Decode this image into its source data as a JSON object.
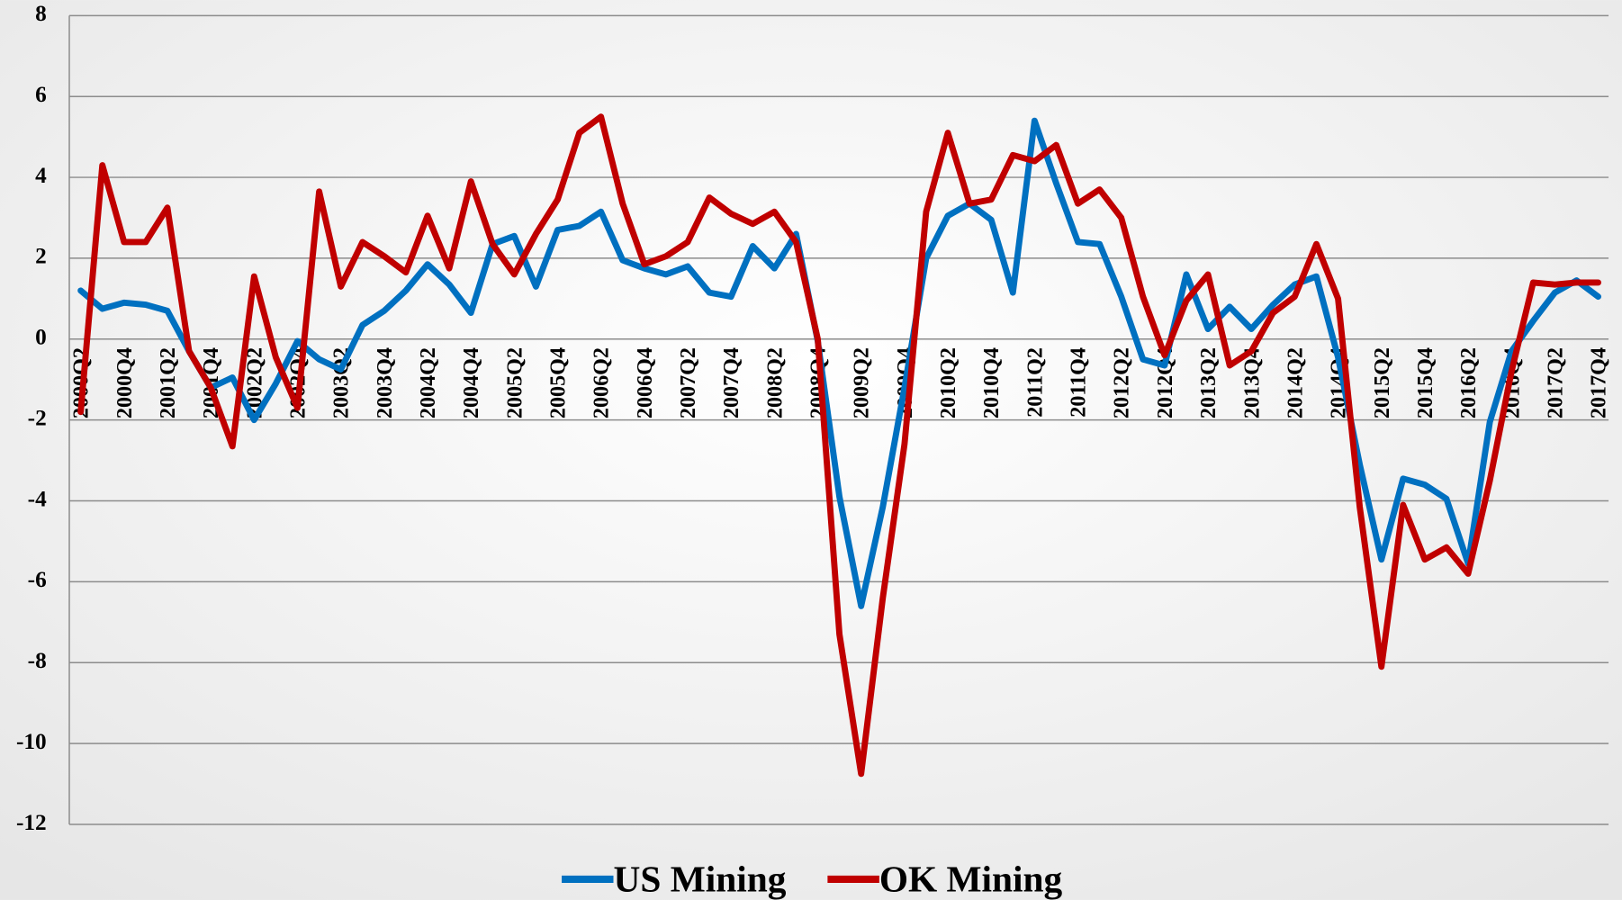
{
  "chart_data": {
    "type": "line",
    "categories": [
      "2000Q2",
      null,
      "2000Q4",
      null,
      "2001Q2",
      null,
      "2001Q4",
      null,
      "2002Q2",
      null,
      "2002Q4",
      null,
      "2003Q2",
      null,
      "2003Q4",
      null,
      "2004Q2",
      null,
      "2004Q4",
      null,
      "2005Q2",
      null,
      "2005Q4",
      null,
      "2006Q2",
      null,
      "2006Q4",
      null,
      "2007Q2",
      null,
      "2007Q4",
      null,
      "2008Q2",
      null,
      "2008Q4",
      null,
      "2009Q2",
      null,
      "2009Q4",
      null,
      "2010Q2",
      null,
      "2010Q4",
      null,
      "2011Q2",
      null,
      "2011Q4",
      null,
      "2012Q2",
      null,
      "2012Q4",
      null,
      "2013Q2",
      null,
      "2013Q4",
      null,
      "2014Q2",
      null,
      "2014Q4",
      null,
      "2015Q2",
      null,
      "2015Q4",
      null,
      "2016Q2",
      null,
      "2016Q4",
      null,
      "2017Q2",
      null,
      "2017Q4"
    ],
    "series": [
      {
        "name": "US Mining",
        "color": "#0070c0",
        "values": [
          1.2,
          0.75,
          0.9,
          0.85,
          0.7,
          -0.3,
          -1.2,
          -0.95,
          -2.0,
          -1.1,
          -0.05,
          -0.5,
          -0.75,
          0.35,
          0.7,
          1.2,
          1.85,
          1.35,
          0.65,
          2.35,
          2.55,
          1.3,
          2.7,
          2.8,
          3.15,
          1.95,
          1.75,
          1.6,
          1.8,
          1.15,
          1.05,
          2.3,
          1.75,
          2.6,
          -0.05,
          -3.9,
          -6.6,
          -4.15,
          -1.2,
          2.0,
          3.05,
          3.35,
          2.95,
          1.15,
          5.4,
          3.85,
          2.4,
          2.35,
          1.05,
          -0.5,
          -0.65,
          1.6,
          0.25,
          0.8,
          0.25,
          0.85,
          1.35,
          1.55,
          -0.45,
          -3.1,
          -5.45,
          -3.45,
          -3.6,
          -3.95,
          -5.55,
          -2.05,
          -0.3,
          0.45,
          1.15,
          1.45,
          1.05
        ]
      },
      {
        "name": "OK Mining",
        "color": "#c00000",
        "values": [
          -1.8,
          4.3,
          2.4,
          2.4,
          3.25,
          -0.3,
          -1.2,
          -2.65,
          1.55,
          -0.45,
          -1.7,
          3.65,
          1.3,
          2.4,
          2.05,
          1.65,
          3.05,
          1.75,
          3.9,
          2.35,
          1.6,
          2.6,
          3.45,
          5.1,
          5.5,
          3.35,
          1.85,
          2.05,
          2.4,
          3.5,
          3.1,
          2.85,
          3.15,
          2.4,
          0.0,
          -7.3,
          -10.75,
          -6.4,
          -2.6,
          3.15,
          5.1,
          3.35,
          3.45,
          4.55,
          4.4,
          4.8,
          3.35,
          3.7,
          3.0,
          1.05,
          -0.4,
          0.95,
          1.6,
          -0.65,
          -0.3,
          0.65,
          1.05,
          2.35,
          1.0,
          -4.15,
          -8.1,
          -4.1,
          -5.45,
          -5.15,
          -5.8,
          -3.5,
          -0.8,
          1.4,
          1.35,
          1.4,
          1.4
        ]
      }
    ],
    "ylim": [
      -12,
      8
    ],
    "yticks": [
      -12,
      -10,
      -8,
      -6,
      -4,
      -2,
      0,
      2,
      4,
      6,
      8
    ],
    "grid": true,
    "legend": "bottom"
  }
}
